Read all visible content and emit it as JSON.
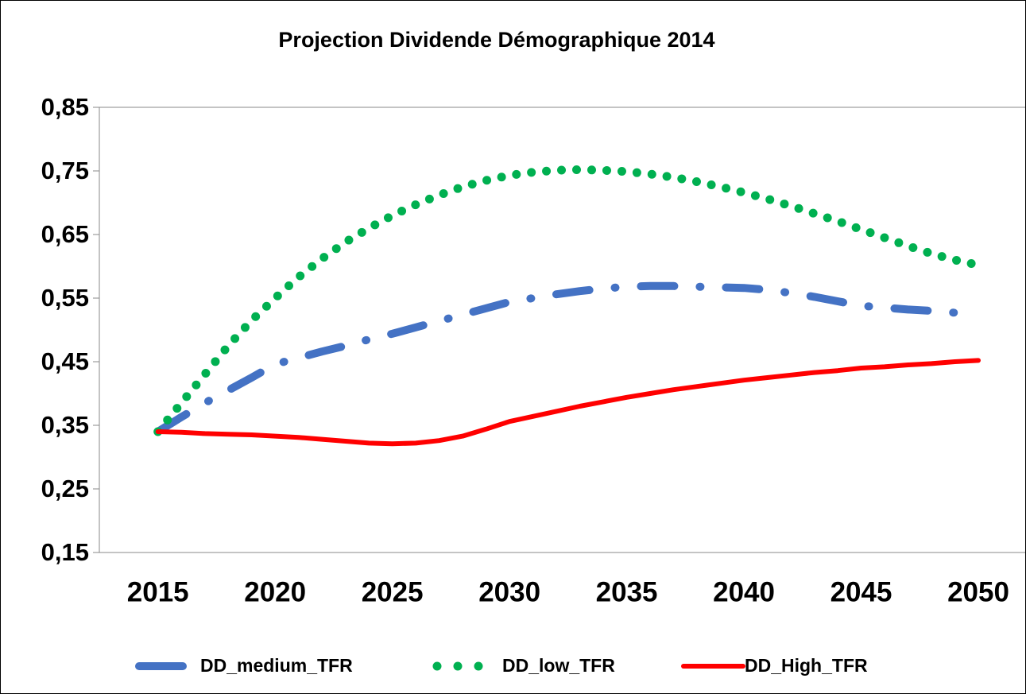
{
  "chart_data": {
    "type": "line",
    "title": "Projection Dividende Démographique 2014",
    "x": [
      2015,
      2016,
      2017,
      2018,
      2019,
      2020,
      2021,
      2022,
      2023,
      2024,
      2025,
      2026,
      2027,
      2028,
      2029,
      2030,
      2031,
      2032,
      2033,
      2034,
      2035,
      2036,
      2037,
      2038,
      2039,
      2040,
      2041,
      2042,
      2043,
      2044,
      2045,
      2046,
      2047,
      2048,
      2049,
      2050
    ],
    "xlim": [
      2012.5,
      2052
    ],
    "xticks": [
      2015,
      2020,
      2025,
      2030,
      2035,
      2040,
      2045,
      2050
    ],
    "ylim": [
      0.15,
      0.85
    ],
    "yticks": [
      {
        "value": 0.15,
        "label": "0,15"
      },
      {
        "value": 0.25,
        "label": "0,25"
      },
      {
        "value": 0.35,
        "label": "0,35"
      },
      {
        "value": 0.45,
        "label": "0,45"
      },
      {
        "value": 0.55,
        "label": "0,55"
      },
      {
        "value": 0.65,
        "label": "0,65"
      },
      {
        "value": 0.75,
        "label": "0,75"
      },
      {
        "value": 0.85,
        "label": "0,85"
      }
    ],
    "legend": "bottom",
    "series": [
      {
        "name": "DD_medium_TFR",
        "color": "#4472c4",
        "line_style": "dashdot",
        "values": [
          0.34,
          0.363,
          0.385,
          0.405,
          0.425,
          0.446,
          0.456,
          0.466,
          0.475,
          0.485,
          0.494,
          0.504,
          0.514,
          0.524,
          0.534,
          0.544,
          0.55,
          0.556,
          0.561,
          0.565,
          0.568,
          0.569,
          0.569,
          0.568,
          0.567,
          0.566,
          0.563,
          0.558,
          0.552,
          0.545,
          0.538,
          0.535,
          0.532,
          0.53,
          0.527,
          0.525
        ]
      },
      {
        "name": "DD_low_TFR",
        "color": "#00b050",
        "line_style": "dotted",
        "values": [
          0.34,
          0.385,
          0.43,
          0.475,
          0.515,
          0.55,
          0.583,
          0.612,
          0.638,
          0.66,
          0.68,
          0.697,
          0.712,
          0.725,
          0.735,
          0.743,
          0.748,
          0.751,
          0.752,
          0.751,
          0.749,
          0.745,
          0.74,
          0.733,
          0.725,
          0.716,
          0.706,
          0.695,
          0.683,
          0.671,
          0.658,
          0.645,
          0.632,
          0.62,
          0.61,
          0.602
        ]
      },
      {
        "name": "DD_High_TFR",
        "color": "#ff0000",
        "line_style": "solid",
        "values": [
          0.34,
          0.339,
          0.337,
          0.336,
          0.335,
          0.333,
          0.331,
          0.328,
          0.325,
          0.322,
          0.321,
          0.322,
          0.326,
          0.333,
          0.344,
          0.356,
          0.364,
          0.372,
          0.38,
          0.387,
          0.394,
          0.4,
          0.406,
          0.411,
          0.416,
          0.421,
          0.425,
          0.429,
          0.433,
          0.436,
          0.44,
          0.442,
          0.445,
          0.447,
          0.45,
          0.452
        ]
      }
    ]
  }
}
